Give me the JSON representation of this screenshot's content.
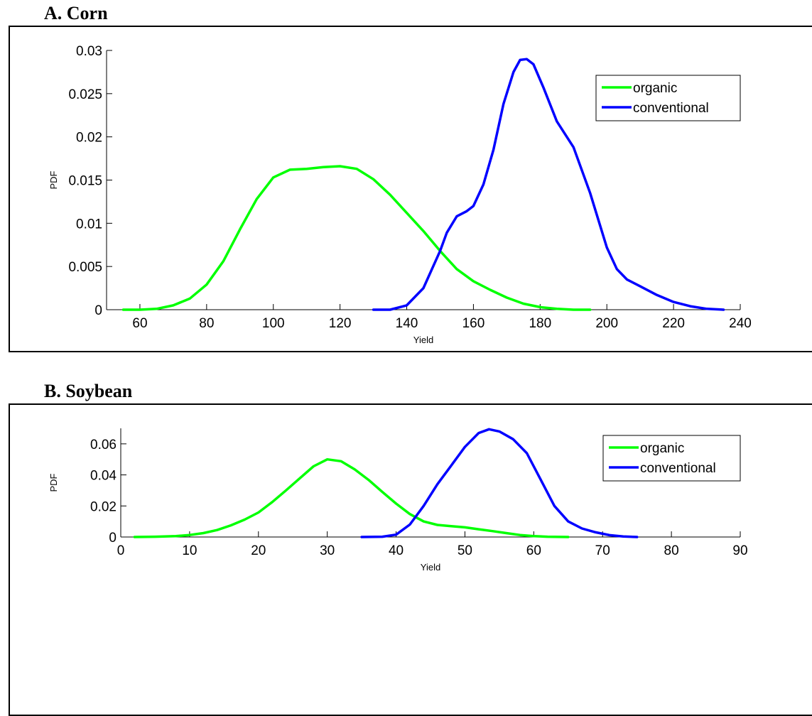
{
  "chart_data": [
    {
      "type": "line",
      "panel_title": "A.  Corn",
      "xlabel": "Yield",
      "ylabel": "PDF",
      "xlim": [
        50,
        240
      ],
      "ylim": [
        0,
        0.03
      ],
      "xticks": [
        60,
        80,
        100,
        120,
        140,
        160,
        180,
        200,
        220,
        240
      ],
      "yticks": [
        0,
        0.005,
        0.01,
        0.015,
        0.02,
        0.025,
        0.03
      ],
      "ytick_labels": [
        "0",
        "0.005",
        "0.01",
        "0.015",
        "0.02",
        "0.025",
        "0.03"
      ],
      "legend_position": "top-right",
      "grid": false,
      "series": [
        {
          "name": "organic",
          "color": "#00ff00",
          "x": [
            55,
            60,
            65,
            70,
            75,
            80,
            85,
            90,
            95,
            100,
            105,
            110,
            115,
            120,
            125,
            130,
            135,
            140,
            145,
            150,
            155,
            160,
            165,
            170,
            175,
            180,
            185,
            190,
            195
          ],
          "y": [
            0,
            0,
            0.0001,
            0.0005,
            0.0013,
            0.0029,
            0.0056,
            0.0093,
            0.0128,
            0.0153,
            0.0162,
            0.0163,
            0.0165,
            0.0166,
            0.0163,
            0.0151,
            0.0133,
            0.0112,
            0.0091,
            0.0068,
            0.0047,
            0.0033,
            0.0023,
            0.0014,
            0.0007,
            0.0003,
            0.0001,
            0,
            0
          ]
        },
        {
          "name": "conventional",
          "color": "#0000ff",
          "x": [
            130,
            135,
            140,
            145,
            150,
            152,
            155,
            158,
            160,
            163,
            166,
            169,
            172,
            174,
            176,
            178,
            181,
            185,
            190,
            195,
            200,
            203,
            206,
            210,
            215,
            220,
            225,
            230,
            235
          ],
          "y": [
            0,
            0,
            0.0005,
            0.0025,
            0.0068,
            0.0089,
            0.0108,
            0.0114,
            0.012,
            0.0145,
            0.0185,
            0.0238,
            0.0275,
            0.0289,
            0.029,
            0.0284,
            0.0257,
            0.0218,
            0.0188,
            0.0135,
            0.0072,
            0.0047,
            0.0035,
            0.0027,
            0.0017,
            0.0009,
            0.0004,
            0.0001,
            0
          ]
        }
      ]
    },
    {
      "type": "line",
      "panel_title": "B.  Soybean",
      "xlabel": "Yield",
      "ylabel": "PDF",
      "xlim": [
        0,
        90
      ],
      "ylim": [
        0,
        0.07
      ],
      "xticks": [
        0,
        10,
        20,
        30,
        40,
        50,
        60,
        70,
        80,
        90
      ],
      "yticks": [
        0,
        0.02,
        0.04,
        0.06
      ],
      "ytick_labels": [
        "0",
        "0.02",
        "0.04",
        "0.06"
      ],
      "legend_position": "top-right",
      "grid": false,
      "series": [
        {
          "name": "organic",
          "color": "#00ff00",
          "x": [
            2,
            5,
            8,
            10,
            12,
            14,
            16,
            18,
            20,
            22,
            24,
            26,
            28,
            30,
            32,
            34,
            36,
            38,
            40,
            42,
            44,
            46,
            48,
            50,
            52,
            54,
            56,
            58,
            60,
            62,
            65
          ],
          "y": [
            0,
            0.0002,
            0.0006,
            0.0013,
            0.0025,
            0.0045,
            0.0075,
            0.0112,
            0.0158,
            0.0225,
            0.03,
            0.0378,
            0.0455,
            0.05,
            0.0488,
            0.0435,
            0.0368,
            0.029,
            0.0215,
            0.0148,
            0.01,
            0.0078,
            0.007,
            0.0062,
            0.005,
            0.0038,
            0.0025,
            0.0013,
            0.0006,
            0.0002,
            0
          ]
        },
        {
          "name": "conventional",
          "color": "#0000ff",
          "x": [
            35,
            38,
            40,
            42,
            44,
            46,
            48,
            50,
            52,
            53.5,
            55,
            57,
            59,
            61,
            63,
            65,
            67,
            69,
            71,
            73,
            75
          ],
          "y": [
            0,
            0.0002,
            0.0015,
            0.008,
            0.02,
            0.034,
            0.046,
            0.058,
            0.067,
            0.0694,
            0.068,
            0.063,
            0.054,
            0.037,
            0.02,
            0.01,
            0.0055,
            0.003,
            0.0012,
            0.0003,
            0
          ]
        }
      ]
    }
  ]
}
